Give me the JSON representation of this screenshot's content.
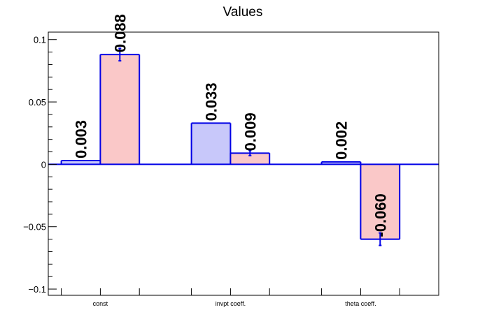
{
  "chart_data": {
    "type": "bar",
    "title": "Values",
    "xlabel": "",
    "ylabel": "",
    "categories": [
      "const",
      "invpt coeff.",
      "theta coeff."
    ],
    "series": [
      {
        "values": [
          0.003,
          0.033,
          0.002
        ],
        "errors": [
          0.0,
          0.0,
          0.0
        ],
        "labels": [
          "0.003",
          "0.033",
          "0.002"
        ],
        "color": "#c8c8fa"
      },
      {
        "values": [
          0.088,
          0.009,
          -0.06
        ],
        "errors": [
          0.005,
          0.002,
          0.005
        ],
        "labels": [
          "0.088",
          "0.009",
          "-0.060"
        ],
        "color": "#fac8c8"
      }
    ],
    "ylim": [
      -0.105,
      0.106
    ],
    "yticks": [
      -0.1,
      -0.05,
      0,
      0.05,
      0.1
    ],
    "ytick_labels": [
      "−0.1",
      "−0.05",
      "0",
      "0.05",
      "0.1"
    ],
    "edge_color": "#0000e6",
    "grid": false,
    "legend": "none"
  }
}
